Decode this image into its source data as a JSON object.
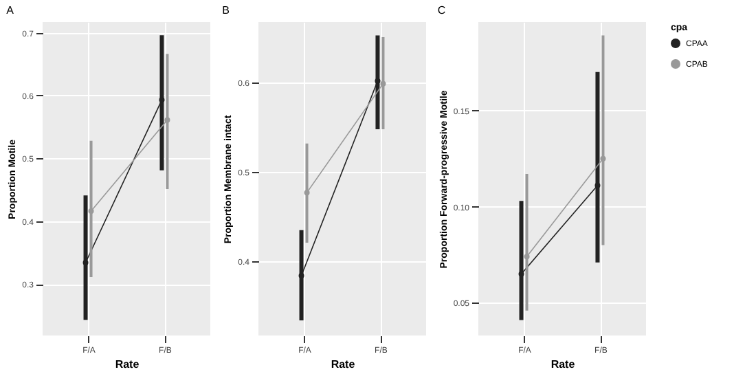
{
  "chart_data": [
    {
      "type": "line",
      "title": "A",
      "xlabel": "Rate",
      "ylabel": "Proportion Motile",
      "categories": [
        "F/A",
        "F/B"
      ],
      "ylim": [
        0.218,
        0.717
      ],
      "yticks": [
        0.3,
        0.4,
        0.5,
        0.6,
        0.7
      ],
      "grid": true,
      "marker": "circle",
      "legend": false,
      "series": [
        {
          "color": "#222222",
          "values": [
            0.334,
            0.593
          ],
          "errors": [
            [
              0.243,
              0.441
            ],
            [
              0.481,
              0.696
            ]
          ]
        },
        {
          "color": "#999999",
          "values": [
            0.416,
            0.561
          ],
          "errors": [
            [
              0.311,
              0.528
            ],
            [
              0.451,
              0.666
            ]
          ]
        }
      ]
    },
    {
      "type": "line",
      "title": "B",
      "xlabel": "Rate",
      "ylabel": "Proportion Membrane intact",
      "categories": [
        "F/A",
        "F/B"
      ],
      "ylim": [
        0.317,
        0.668
      ],
      "yticks": [
        0.4,
        0.5,
        0.6
      ],
      "grid": true,
      "marker": "circle",
      "legend": false,
      "series": [
        {
          "color": "#222222",
          "values": [
            0.384,
            0.602
          ],
          "errors": [
            [
              0.334,
              0.435
            ],
            [
              0.548,
              0.653
            ]
          ]
        },
        {
          "color": "#999999",
          "values": [
            0.477,
            0.599
          ],
          "errors": [
            [
              0.421,
              0.532
            ],
            [
              0.548,
              0.651
            ]
          ]
        }
      ]
    },
    {
      "type": "line",
      "title": "C",
      "xlabel": "Rate",
      "ylabel": "Proportion Forward-progressive Motile",
      "categories": [
        "F/A",
        "F/B"
      ],
      "ylim": [
        0.033,
        0.196
      ],
      "yticks": [
        0.05,
        {
          "value": 0.1,
          "label": "0.10"
        },
        0.15
      ],
      "grid": true,
      "marker": "circle",
      "legend": "right",
      "legend_title": "cpa",
      "series": [
        {
          "name": "CPAA",
          "color": "#222222",
          "values": [
            0.065,
            0.111
          ],
          "errors": [
            [
              0.041,
              0.103
            ],
            [
              0.071,
              0.17
            ]
          ]
        },
        {
          "name": "CPAB",
          "color": "#999999",
          "values": [
            0.074,
            0.125
          ],
          "errors": [
            [
              0.046,
              0.117
            ],
            [
              0.08,
              0.189
            ]
          ]
        }
      ]
    }
  ]
}
